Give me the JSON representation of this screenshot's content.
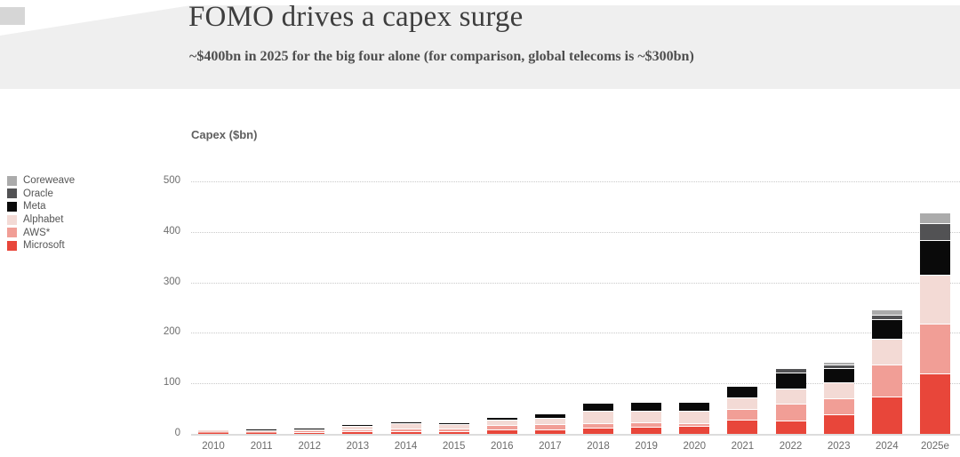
{
  "header": {
    "title": "FOMO drives a capex surge",
    "subtitle": "~$400bn in 2025 for the big four alone (for comparison, global telecoms is ~$300bn)"
  },
  "chart": {
    "axis_title": "Capex ($bn)"
  },
  "chart_data": {
    "type": "bar",
    "stacked": true,
    "title": "FOMO drives a capex surge",
    "subtitle": "~$400bn in 2025 for the big four alone (for comparison, global telecoms is ~$300bn)",
    "ylabel": "Capex ($bn)",
    "xlabel": "",
    "ylim": [
      0,
      500
    ],
    "y_ticks": [
      0,
      100,
      200,
      300,
      400,
      500
    ],
    "grid": "dotted-horizontal",
    "legend_position": "left",
    "legend_order_top_to_bottom": [
      "Coreweave",
      "Oracle",
      "Meta",
      "Alphabet",
      "AWS*",
      "Microsoft"
    ],
    "categories": [
      "2010",
      "2011",
      "2012",
      "2013",
      "2014",
      "2015",
      "2016",
      "2017",
      "2018",
      "2019",
      "2020",
      "2021",
      "2022",
      "2023",
      "2024",
      "2025e"
    ],
    "series": [
      {
        "name": "Microsoft",
        "color": "#e8463a",
        "values": [
          2,
          2.5,
          3,
          4.5,
          5.5,
          6,
          9,
          9,
          12,
          14,
          16,
          28,
          26,
          38,
          74,
          119
        ]
      },
      {
        "name": "AWS*",
        "color": "#f19e96",
        "values": [
          1,
          1.5,
          2,
          4,
          5,
          5,
          8,
          10,
          9,
          9,
          5,
          22,
          33,
          33,
          64,
          100
        ]
      },
      {
        "name": "Alphabet",
        "color": "#f3dad5",
        "values": [
          3.5,
          3.5,
          3.5,
          7,
          11,
          9,
          11,
          13,
          25,
          23,
          25,
          22,
          31,
          31,
          50,
          96
        ]
      },
      {
        "name": "Meta",
        "color": "#0a0a0a",
        "values": [
          0,
          0.5,
          1.5,
          1.5,
          1.5,
          2,
          4.5,
          7,
          14,
          15,
          15,
          22,
          31,
          28,
          39,
          69
        ]
      },
      {
        "name": "Oracle",
        "color": "#525254",
        "values": [
          0,
          0,
          0,
          0,
          0,
          0,
          0,
          0,
          0,
          0,
          0,
          0,
          7,
          7,
          9,
          33
        ]
      },
      {
        "name": "Coreweave",
        "color": "#ababab",
        "values": [
          0,
          0,
          0,
          0,
          0,
          0,
          0,
          0,
          0,
          0,
          0,
          0,
          0,
          4,
          9,
          19
        ]
      }
    ],
    "totals": [
      6.5,
      8,
      10,
      17,
      23,
      22,
      32.5,
      39,
      60,
      61,
      61,
      94,
      128,
      141,
      245,
      436
    ]
  }
}
